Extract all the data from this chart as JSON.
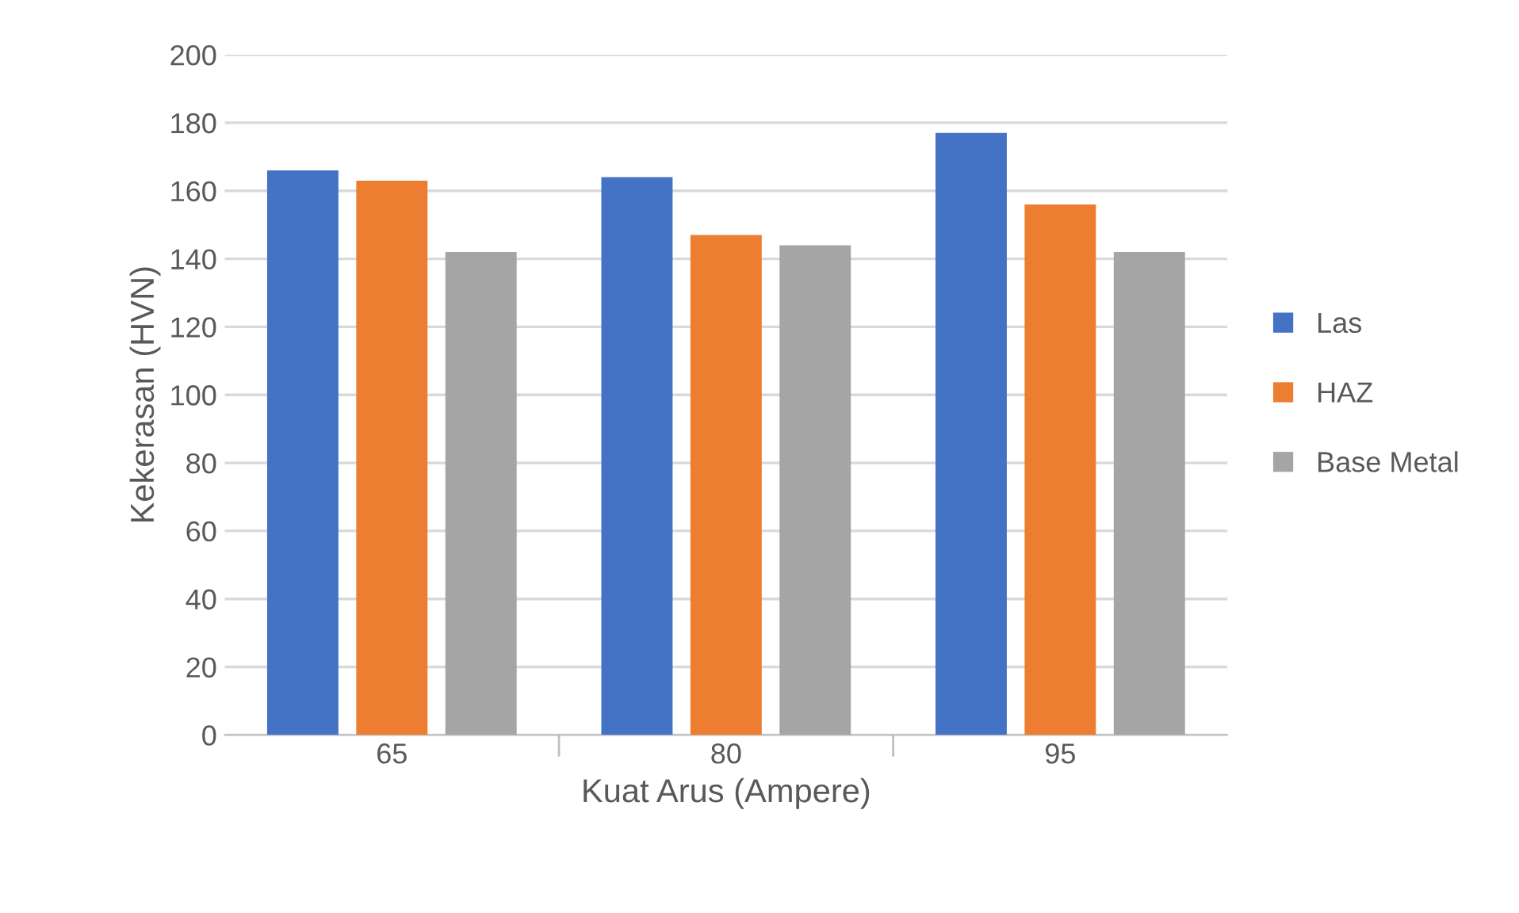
{
  "chart_data": {
    "type": "bar",
    "xlabel": "Kuat Arus (Ampere)",
    "ylabel": "Kekerasan (HVN)",
    "categories": [
      "65",
      "80",
      "95"
    ],
    "series": [
      {
        "name": "Las",
        "color": "#4472c4",
        "values": [
          166,
          164,
          177
        ]
      },
      {
        "name": "HAZ",
        "color": "#ed7d31",
        "values": [
          163,
          147,
          156
        ]
      },
      {
        "name": "Base Metal",
        "color": "#a5a5a5",
        "values": [
          142,
          144,
          142
        ]
      }
    ],
    "ylim": [
      0,
      200
    ],
    "yticks": [
      0,
      20,
      40,
      60,
      80,
      100,
      120,
      140,
      160,
      180,
      200
    ],
    "grid": "y",
    "legend": "right"
  }
}
